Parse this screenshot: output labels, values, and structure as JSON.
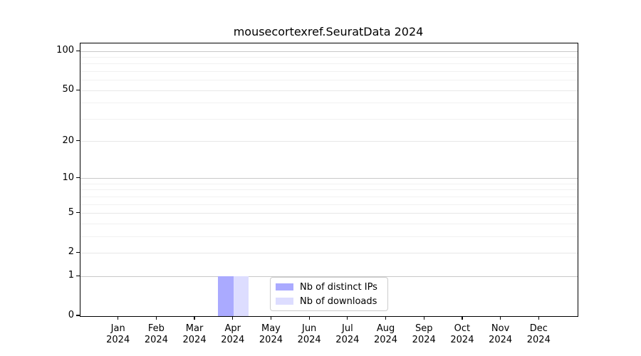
{
  "chart_data": {
    "type": "bar",
    "title": "mousecortexref.SeuratData 2024",
    "categories": [
      "Jan 2024",
      "Feb 2024",
      "Mar 2024",
      "Apr 2024",
      "May 2024",
      "Jun 2024",
      "Jul 2024",
      "Aug 2024",
      "Sep 2024",
      "Oct 2024",
      "Nov 2024",
      "Dec 2024"
    ],
    "series": [
      {
        "name": "Nb of distinct IPs",
        "color": "#aaaaff",
        "values": [
          0,
          0,
          0,
          1,
          0,
          0,
          0,
          0,
          0,
          0,
          0,
          0
        ]
      },
      {
        "name": "Nb of downloads",
        "color": "#ddddff",
        "values": [
          0,
          0,
          0,
          1,
          0,
          0,
          0,
          0,
          0,
          0,
          0,
          0
        ]
      }
    ],
    "y_axis": {
      "scale": "log1p",
      "ticks": [
        0,
        1,
        2,
        5,
        10,
        20,
        50,
        100
      ],
      "major_gridlines": [
        1,
        10,
        100
      ],
      "minor_gridlines": [
        3,
        4,
        6,
        7,
        8,
        9,
        30,
        40,
        60,
        70,
        80,
        90
      ],
      "max": 115
    },
    "xlabel": "",
    "ylabel": "",
    "grid": "horizontal",
    "legend_position": "bottom-center",
    "background": "#ffffff"
  }
}
